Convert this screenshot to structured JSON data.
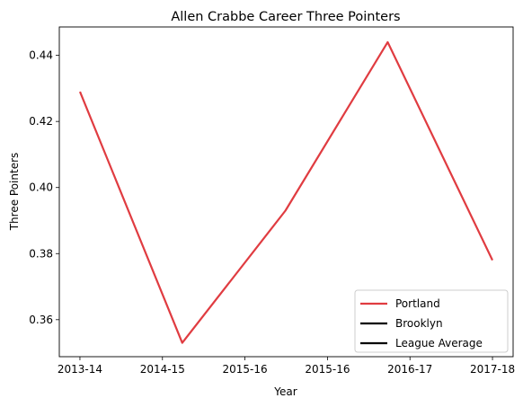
{
  "chart_data": {
    "type": "line",
    "title": "Allen Crabbe Career Three Pointers",
    "xlabel": "Year",
    "ylabel": "Three Pointers",
    "x_tick_labels": [
      "2013-14",
      "2014-15",
      "2015-16",
      "2015-16",
      "2016-17",
      "2017-18"
    ],
    "y_tick_labels": [
      "0.36",
      "0.38",
      "0.40",
      "0.42",
      "0.44"
    ],
    "y_ticks": [
      0.36,
      0.38,
      0.4,
      0.42,
      0.44
    ],
    "ylim": [
      0.3488,
      0.4486
    ],
    "xlim": [
      -0.25,
      5.25
    ],
    "grid": false,
    "legend_position": "lower-right",
    "series": [
      {
        "name": "Portland",
        "color": "#e03c41",
        "points": [
          [
            0,
            0.429
          ],
          [
            1.24,
            0.353
          ],
          [
            2.49,
            0.393
          ],
          [
            3.73,
            0.444
          ],
          [
            5,
            0.378
          ]
        ]
      },
      {
        "name": "Brooklyn",
        "color": "#000000",
        "points": []
      },
      {
        "name": "League Average",
        "color": "#000000",
        "points": []
      }
    ]
  }
}
